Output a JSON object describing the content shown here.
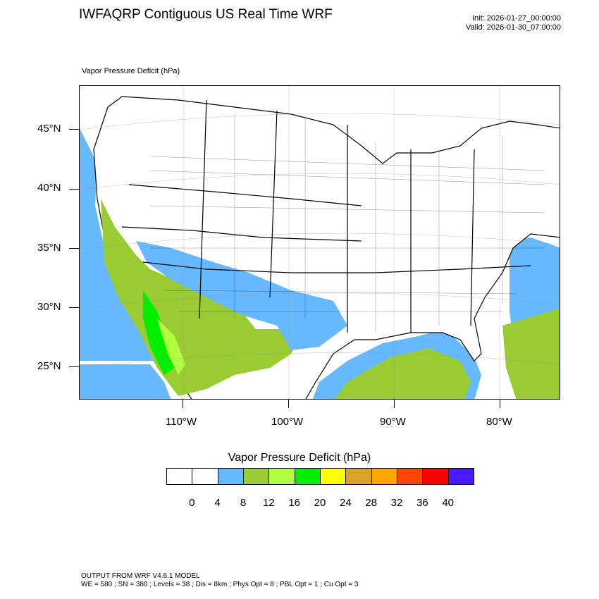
{
  "header": {
    "title": "IWFAQRP Contiguous US Real Time WRF",
    "init": "Init: 2026-01-27_00:00:00",
    "valid": "Valid: 2026-01-30_07:00:00"
  },
  "map": {
    "variable_label": "Vapor Pressure Deficit   (hPa)",
    "lat_labels": [
      "45°N",
      "40°N",
      "35°N",
      "30°N",
      "25°N"
    ],
    "lon_labels": [
      "110°W",
      "100°W",
      "90°W",
      "80°W"
    ],
    "colors": {
      "land": "#ffffff",
      "border": "#000000",
      "vpd_4_8": "#66b8ff",
      "vpd_8_12": "#99cc33",
      "vpd_12_16": "#b0ff40",
      "vpd_16_20": "#00ee00"
    }
  },
  "colorbar": {
    "title": "Vapor Pressure Deficit  (hPa)",
    "colors": [
      "#ffffff",
      "#ffffff",
      "#66b8ff",
      "#99cc33",
      "#b0ff40",
      "#00ee00",
      "#ffff00",
      "#d9a426",
      "#ffa500",
      "#ff4500",
      "#ff0000",
      "#4a1aff"
    ],
    "labels": [
      "0",
      "4",
      "8",
      "12",
      "16",
      "20",
      "24",
      "28",
      "32",
      "36",
      "40"
    ]
  },
  "footer": {
    "line1": "OUTPUT FROM WRF V4.6.1 MODEL",
    "line2": "WE = 580 ; SN = 380 ; Levels = 38 ; Dis = 8km ; Phys Opt = 8 ; PBL Opt = 1 ; Cu Opt = 3"
  }
}
